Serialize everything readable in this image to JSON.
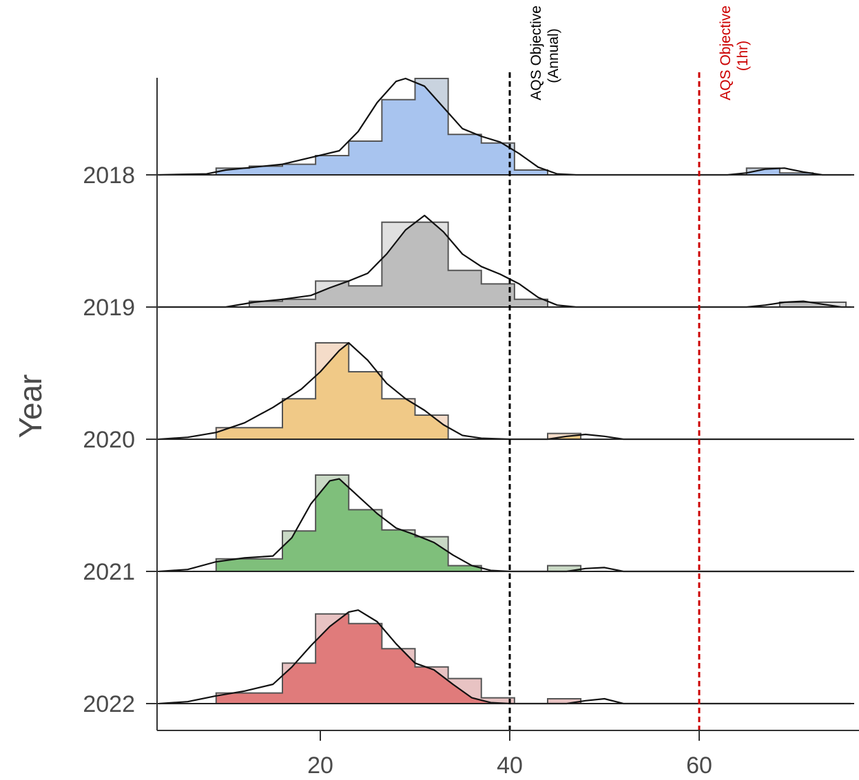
{
  "chart_data": {
    "type": "area",
    "subtype": "ridgeline-histogram-density",
    "title": "",
    "xlabel": "",
    "ylabel": "Year",
    "xlim": [
      3,
      76
    ],
    "x_ticks": [
      "20",
      "40",
      "60"
    ],
    "x_tick_values": [
      20,
      40,
      60
    ],
    "grid": false,
    "legend": "none",
    "bin_edges": [
      5.5,
      9,
      12.5,
      16,
      19.5,
      23,
      26.5,
      30,
      33.5,
      37,
      40.5,
      44,
      47.5,
      51,
      54.5,
      58,
      61.5,
      65,
      68.5,
      72,
      75.5
    ],
    "reference_lines": [
      {
        "x": 40,
        "label_line1": "AQS Objective",
        "label_line2": "(Annual)",
        "color": "#000000",
        "style": "dashed"
      },
      {
        "x": 60,
        "label_line1": "AQS Objective",
        "label_line2": "(1hr)",
        "color": "#cc0000",
        "style": "dashed"
      }
    ],
    "series": [
      {
        "name": "2018",
        "color": "#a8c4ef",
        "light_color": "#c9d3df",
        "histogram": [
          0,
          0.07,
          0.09,
          0.11,
          0.2,
          0.35,
          0.78,
          1.0,
          0.42,
          0.33,
          0.05,
          0,
          0,
          0,
          0,
          0,
          0,
          0.07,
          0.02,
          0
        ],
        "density": [
          [
            3,
            0
          ],
          [
            8,
            0.01
          ],
          [
            10,
            0.05
          ],
          [
            13,
            0.08
          ],
          [
            16,
            0.11
          ],
          [
            19,
            0.18
          ],
          [
            22,
            0.25
          ],
          [
            24,
            0.45
          ],
          [
            26,
            0.75
          ],
          [
            28,
            0.97
          ],
          [
            29,
            1.0
          ],
          [
            31,
            0.92
          ],
          [
            33,
            0.7
          ],
          [
            35,
            0.48
          ],
          [
            37,
            0.4
          ],
          [
            39,
            0.34
          ],
          [
            41,
            0.22
          ],
          [
            43,
            0.08
          ],
          [
            45,
            0.01
          ],
          [
            47,
            0
          ],
          [
            63,
            0
          ],
          [
            65,
            0.02
          ],
          [
            67,
            0.06
          ],
          [
            69,
            0.07
          ],
          [
            71,
            0.03
          ],
          [
            73,
            0
          ],
          [
            76,
            0
          ]
        ]
      },
      {
        "name": "2019",
        "color": "#bdbdbd",
        "light_color": "#e0e0e0",
        "histogram": [
          0,
          0,
          0.06,
          0.08,
          0.27,
          0.22,
          0.88,
          0.88,
          0.38,
          0.24,
          0.08,
          0,
          0,
          0,
          0,
          0,
          0,
          0,
          0.05,
          0.05
        ],
        "density": [
          [
            3,
            0
          ],
          [
            10,
            0
          ],
          [
            13,
            0.05
          ],
          [
            16,
            0.08
          ],
          [
            19,
            0.12
          ],
          [
            21,
            0.2
          ],
          [
            23,
            0.27
          ],
          [
            25,
            0.35
          ],
          [
            27,
            0.55
          ],
          [
            29,
            0.8
          ],
          [
            31,
            0.95
          ],
          [
            33,
            0.78
          ],
          [
            35,
            0.55
          ],
          [
            37,
            0.42
          ],
          [
            39,
            0.34
          ],
          [
            41,
            0.24
          ],
          [
            43,
            0.1
          ],
          [
            45,
            0.02
          ],
          [
            47,
            0
          ],
          [
            65,
            0
          ],
          [
            67,
            0.02
          ],
          [
            69,
            0.05
          ],
          [
            71,
            0.06
          ],
          [
            73,
            0.03
          ],
          [
            75,
            0
          ],
          [
            76,
            0
          ]
        ]
      },
      {
        "name": "2020",
        "color": "#f0c987",
        "light_color": "#f4dcc9",
        "histogram": [
          0,
          0.12,
          0.12,
          0.42,
          1.0,
          0.7,
          0.42,
          0.25,
          0,
          0,
          0,
          0.06,
          0,
          0,
          0,
          0,
          0,
          0,
          0,
          0
        ],
        "density": [
          [
            3,
            0
          ],
          [
            6,
            0.02
          ],
          [
            9,
            0.07
          ],
          [
            12,
            0.17
          ],
          [
            15,
            0.33
          ],
          [
            18,
            0.52
          ],
          [
            20,
            0.7
          ],
          [
            22,
            0.92
          ],
          [
            23,
            1.0
          ],
          [
            25,
            0.82
          ],
          [
            27,
            0.58
          ],
          [
            29,
            0.42
          ],
          [
            31,
            0.3
          ],
          [
            33,
            0.15
          ],
          [
            35,
            0.04
          ],
          [
            37,
            0.01
          ],
          [
            40,
            0
          ],
          [
            44,
            0
          ],
          [
            46,
            0.03
          ],
          [
            48,
            0.05
          ],
          [
            50,
            0.03
          ],
          [
            52,
            0
          ],
          [
            76,
            0
          ]
        ]
      },
      {
        "name": "2021",
        "color": "#7fbf7b",
        "light_color": "#c9d9c5",
        "histogram": [
          0,
          0.13,
          0.13,
          0.42,
          1.0,
          0.64,
          0.43,
          0.36,
          0.06,
          0,
          0,
          0.06,
          0,
          0,
          0,
          0,
          0,
          0,
          0,
          0
        ],
        "density": [
          [
            3,
            0
          ],
          [
            6,
            0.02
          ],
          [
            9,
            0.1
          ],
          [
            12,
            0.14
          ],
          [
            15,
            0.16
          ],
          [
            17,
            0.35
          ],
          [
            19,
            0.7
          ],
          [
            21,
            0.94
          ],
          [
            22,
            0.96
          ],
          [
            24,
            0.78
          ],
          [
            26,
            0.6
          ],
          [
            28,
            0.45
          ],
          [
            30,
            0.38
          ],
          [
            32,
            0.3
          ],
          [
            34,
            0.17
          ],
          [
            36,
            0.06
          ],
          [
            38,
            0.01
          ],
          [
            40,
            0
          ],
          [
            46,
            0
          ],
          [
            48,
            0.03
          ],
          [
            50,
            0.04
          ],
          [
            52,
            0
          ],
          [
            76,
            0
          ]
        ]
      },
      {
        "name": "2022",
        "color": "#e07b7b",
        "light_color": "#e8c3c3",
        "histogram": [
          0,
          0.11,
          0.11,
          0.42,
          0.93,
          0.83,
          0.57,
          0.38,
          0.26,
          0.06,
          0,
          0.05,
          0,
          0,
          0,
          0,
          0,
          0,
          0,
          0
        ],
        "density": [
          [
            3,
            0
          ],
          [
            6,
            0.02
          ],
          [
            9,
            0.08
          ],
          [
            12,
            0.13
          ],
          [
            15,
            0.2
          ],
          [
            17,
            0.38
          ],
          [
            19,
            0.6
          ],
          [
            21,
            0.8
          ],
          [
            23,
            0.95
          ],
          [
            24,
            0.97
          ],
          [
            26,
            0.85
          ],
          [
            28,
            0.62
          ],
          [
            30,
            0.42
          ],
          [
            32,
            0.35
          ],
          [
            34,
            0.2
          ],
          [
            36,
            0.06
          ],
          [
            38,
            0.01
          ],
          [
            40,
            0
          ],
          [
            46,
            0
          ],
          [
            48,
            0.03
          ],
          [
            50,
            0.05
          ],
          [
            52,
            0
          ],
          [
            76,
            0
          ]
        ]
      }
    ]
  }
}
